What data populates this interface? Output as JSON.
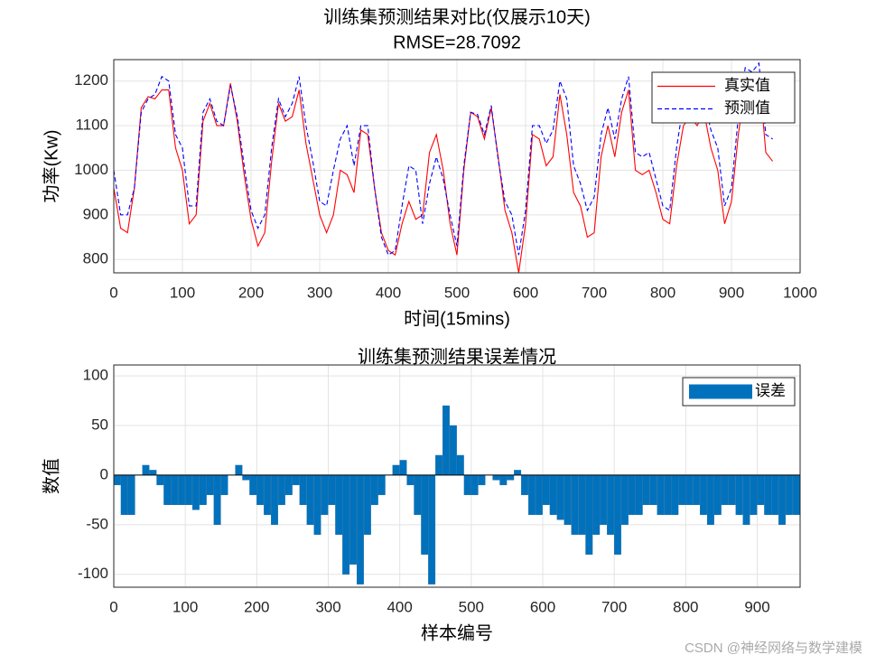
{
  "chart_data": [
    {
      "type": "line",
      "title": "训练集预测结果对比(仅展示10天)",
      "subtitle": "RMSE=28.7092",
      "x_label": "时间(15mins)",
      "y_label": "功率(Kw)",
      "x": [
        0,
        10,
        20,
        30,
        40,
        50,
        60,
        70,
        80,
        90,
        100,
        110,
        120,
        130,
        140,
        150,
        160,
        170,
        180,
        190,
        200,
        210,
        220,
        230,
        240,
        250,
        260,
        270,
        280,
        290,
        300,
        310,
        320,
        330,
        340,
        350,
        360,
        370,
        380,
        390,
        400,
        410,
        420,
        430,
        440,
        450,
        460,
        470,
        480,
        490,
        500,
        510,
        520,
        530,
        540,
        550,
        560,
        570,
        580,
        590,
        600,
        610,
        620,
        630,
        640,
        650,
        660,
        670,
        680,
        690,
        700,
        710,
        720,
        730,
        740,
        750,
        760,
        770,
        780,
        790,
        800,
        810,
        820,
        830,
        840,
        850,
        860,
        870,
        880,
        890,
        900,
        910,
        920,
        930,
        940,
        950,
        960
      ],
      "series": [
        {
          "name": "真实值",
          "color": "#ff0000",
          "style": "solid",
          "values": [
            960,
            870,
            860,
            960,
            1140,
            1165,
            1160,
            1180,
            1180,
            1050,
            1000,
            880,
            900,
            1110,
            1150,
            1100,
            1100,
            1195,
            1110,
            990,
            890,
            830,
            860,
            1020,
            1150,
            1110,
            1120,
            1180,
            1060,
            980,
            900,
            860,
            900,
            1000,
            990,
            950,
            1090,
            1080,
            960,
            860,
            820,
            810,
            880,
            930,
            890,
            900,
            1040,
            1080,
            1000,
            880,
            810,
            1000,
            1130,
            1120,
            1070,
            1140,
            1030,
            910,
            860,
            770,
            880,
            1080,
            1070,
            1010,
            1030,
            1170,
            1080,
            950,
            920,
            850,
            860,
            1030,
            1100,
            1030,
            1130,
            1180,
            1000,
            990,
            1000,
            950,
            890,
            880,
            1010,
            1100,
            1120,
            1100,
            1130,
            1050,
            1000,
            880,
            930,
            1080,
            1190,
            1170,
            1220,
            1040,
            1020
          ]
        },
        {
          "name": "预测值",
          "color": "#0000ff",
          "style": "dashed",
          "values": [
            1000,
            900,
            900,
            960,
            1130,
            1160,
            1170,
            1210,
            1200,
            1080,
            1050,
            920,
            920,
            1130,
            1160,
            1110,
            1100,
            1190,
            1120,
            1010,
            910,
            870,
            900,
            1050,
            1160,
            1120,
            1150,
            1210,
            1100,
            1020,
            930,
            920,
            1000,
            1070,
            1100,
            1010,
            1100,
            1100,
            960,
            850,
            810,
            820,
            920,
            1010,
            1000,
            880,
            970,
            1030,
            980,
            900,
            830,
            1010,
            1130,
            1125,
            1080,
            1145,
            1025,
            930,
            900,
            810,
            910,
            1100,
            1100,
            1060,
            1090,
            1200,
            1160,
            1010,
            970,
            910,
            940,
            1080,
            1140,
            1070,
            1160,
            1210,
            1040,
            1030,
            1040,
            980,
            920,
            910,
            1050,
            1150,
            1160,
            1130,
            1160,
            1090,
            1050,
            920,
            960,
            1120,
            1230,
            1220,
            1240,
            1080,
            1070
          ]
        }
      ],
      "xlim": [
        0,
        1000
      ],
      "xticks": [
        0,
        100,
        200,
        300,
        400,
        500,
        600,
        700,
        800,
        900,
        1000
      ],
      "ylim": [
        770,
        1248
      ],
      "yticks": [
        800,
        900,
        1000,
        1100,
        1200
      ],
      "grid": true,
      "legend": "upper right"
    },
    {
      "type": "bar",
      "title": "训练集预测结果误差情况",
      "x_label": "样本编号",
      "y_label": "数值",
      "x": [
        0,
        10,
        20,
        30,
        40,
        50,
        60,
        70,
        80,
        90,
        100,
        110,
        120,
        130,
        140,
        150,
        160,
        170,
        180,
        190,
        200,
        210,
        220,
        230,
        240,
        250,
        260,
        270,
        280,
        290,
        300,
        310,
        320,
        330,
        340,
        350,
        360,
        370,
        380,
        390,
        400,
        410,
        420,
        430,
        440,
        450,
        460,
        470,
        480,
        490,
        500,
        510,
        520,
        530,
        540,
        550,
        560,
        570,
        580,
        590,
        600,
        610,
        620,
        630,
        640,
        650,
        660,
        670,
        680,
        690,
        700,
        710,
        720,
        730,
        740,
        750,
        760,
        770,
        780,
        790,
        800,
        810,
        820,
        830,
        840,
        850,
        860,
        870,
        880,
        890,
        900,
        910,
        920,
        930,
        940,
        950
      ],
      "series": [
        {
          "name": "误差",
          "color": "#0072bd",
          "values": [
            -10,
            -40,
            -40,
            0,
            10,
            5,
            -10,
            -30,
            -30,
            -30,
            -30,
            -35,
            -30,
            -20,
            -50,
            -20,
            0,
            10,
            -5,
            -20,
            -30,
            -40,
            -50,
            -30,
            -20,
            -10,
            -30,
            -50,
            -60,
            -40,
            -30,
            -60,
            -100,
            -90,
            -110,
            -60,
            -30,
            -20,
            0,
            10,
            15,
            -10,
            -40,
            -80,
            -110,
            20,
            70,
            50,
            20,
            -20,
            -20,
            -10,
            0,
            -5,
            -10,
            -5,
            5,
            -20,
            -40,
            -40,
            -30,
            -40,
            -45,
            -50,
            -60,
            -60,
            -80,
            -60,
            -50,
            -60,
            -80,
            -50,
            -40,
            -40,
            -30,
            -30,
            -40,
            -40,
            -40,
            -30,
            -30,
            -30,
            -40,
            -50,
            -40,
            -30,
            -30,
            -40,
            -50,
            -40,
            -30,
            -40,
            -40,
            -50,
            -40,
            -40
          ]
        }
      ],
      "xlim": [
        0,
        960
      ],
      "xticks": [
        0,
        100,
        200,
        300,
        400,
        500,
        600,
        700,
        800,
        900
      ],
      "ylim": [
        -113,
        111
      ],
      "yticks": [
        -100,
        -50,
        0,
        50,
        100
      ],
      "grid": true,
      "legend": "upper right"
    }
  ],
  "watermark": "CSDN @神经网络与数学建模"
}
